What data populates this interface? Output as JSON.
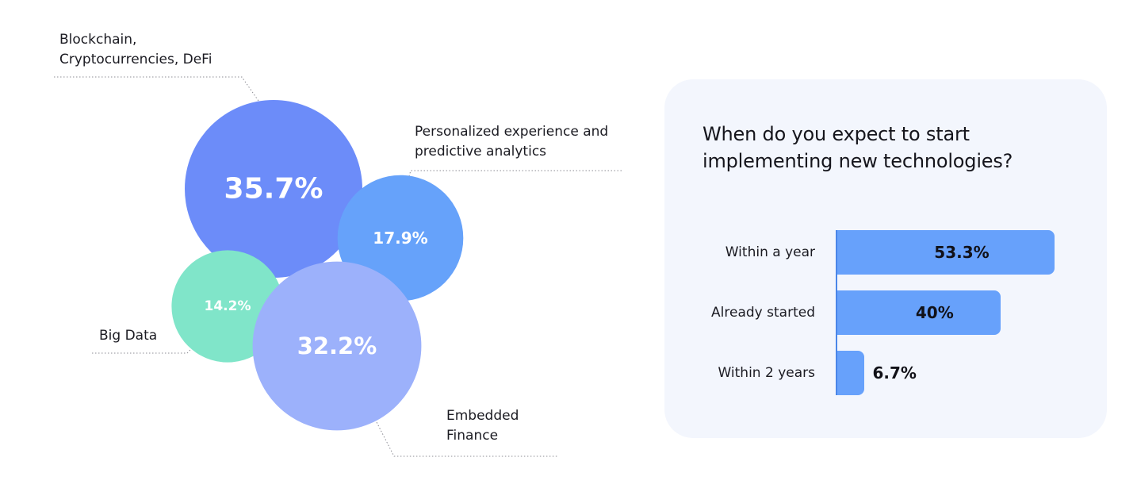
{
  "chart_data": [
    {
      "type": "bubble",
      "title": "",
      "values": [
        {
          "label": "Blockchain, Cryptocurrencies, DeFi",
          "value": 35.7,
          "value_label": "35.7%",
          "color": "#6c8cf9"
        },
        {
          "label": "Personalized experience and predictive analytics",
          "value": 17.9,
          "value_label": "17.9%",
          "color": "#66a2fa"
        },
        {
          "label": "Big Data",
          "value": 14.2,
          "value_label": "14.2%",
          "color": "#80e5c9"
        },
        {
          "label": "Embedded Finance",
          "value": 32.2,
          "value_label": "32.2%",
          "color": "#9cb1fb"
        }
      ],
      "label_lines": {
        "Blockchain, Cryptocurrencies, DeFi": [
          "Blockchain,",
          "Cryptocurrencies, DeFi"
        ],
        "Personalized experience and predictive analytics": [
          "Personalized experience and",
          "predictive analytics"
        ],
        "Big Data": [
          "Big Data"
        ],
        "Embedded Finance": [
          "Embedded",
          "Finance"
        ]
      }
    },
    {
      "type": "bar",
      "orientation": "horizontal",
      "title": "When do you expect to start implementing new technologies?",
      "categories": [
        "Within a year",
        "Already started",
        "Within 2 years"
      ],
      "values": [
        53.3,
        40,
        6.7
      ],
      "value_labels": [
        "53.3%",
        "40%",
        "6.7%"
      ],
      "xlim": [
        0,
        53.3
      ],
      "color": "#67a1fb",
      "axis_color": "#4a86e8",
      "grid": false
    }
  ]
}
